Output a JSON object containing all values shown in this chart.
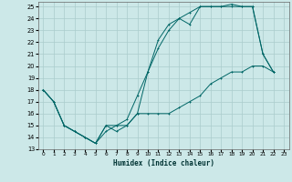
{
  "xlabel": "Humidex (Indice chaleur)",
  "background_color": "#cce8e8",
  "grid_color": "#aacccc",
  "line_color": "#006666",
  "xlim": [
    -0.5,
    23.5
  ],
  "ylim": [
    13,
    25.4
  ],
  "xticks": [
    0,
    1,
    2,
    3,
    4,
    5,
    6,
    7,
    8,
    9,
    10,
    11,
    12,
    13,
    14,
    15,
    16,
    17,
    18,
    19,
    20,
    21,
    22,
    23
  ],
  "yticks": [
    13,
    14,
    15,
    16,
    17,
    18,
    19,
    20,
    21,
    22,
    23,
    24,
    25
  ],
  "line1_x": [
    0,
    1,
    2,
    3,
    4,
    5,
    6,
    7,
    8,
    9,
    10,
    11,
    12,
    13,
    14,
    15,
    16,
    17,
    18,
    19,
    20,
    21,
    22
  ],
  "line1_y": [
    18,
    17,
    15,
    14.5,
    14,
    13.5,
    15,
    15,
    15.5,
    17.5,
    19.5,
    22.2,
    23.5,
    24,
    23.5,
    25,
    25,
    25,
    25.2,
    25,
    25,
    21,
    19.5
  ],
  "line2_x": [
    0,
    1,
    2,
    3,
    4,
    5,
    6,
    7,
    8,
    9,
    10,
    11,
    12,
    13,
    14,
    15,
    16,
    17,
    18,
    19,
    20,
    21,
    22
  ],
  "line2_y": [
    18,
    17,
    15,
    14.5,
    14,
    13.5,
    14.5,
    15,
    15,
    16,
    19.5,
    21.5,
    23,
    24,
    24.5,
    25,
    25,
    25,
    25,
    25,
    25,
    21,
    19.5
  ],
  "line3_x": [
    0,
    1,
    2,
    3,
    4,
    5,
    6,
    7,
    8,
    9,
    10,
    11,
    12,
    13,
    14,
    15,
    16,
    17,
    18,
    19,
    20,
    21,
    22
  ],
  "line3_y": [
    18,
    17,
    15,
    14.5,
    14,
    13.5,
    15,
    14.5,
    15,
    16,
    16,
    16,
    16,
    16.5,
    17,
    17.5,
    18.5,
    19,
    19.5,
    19.5,
    20,
    20,
    19.5
  ]
}
